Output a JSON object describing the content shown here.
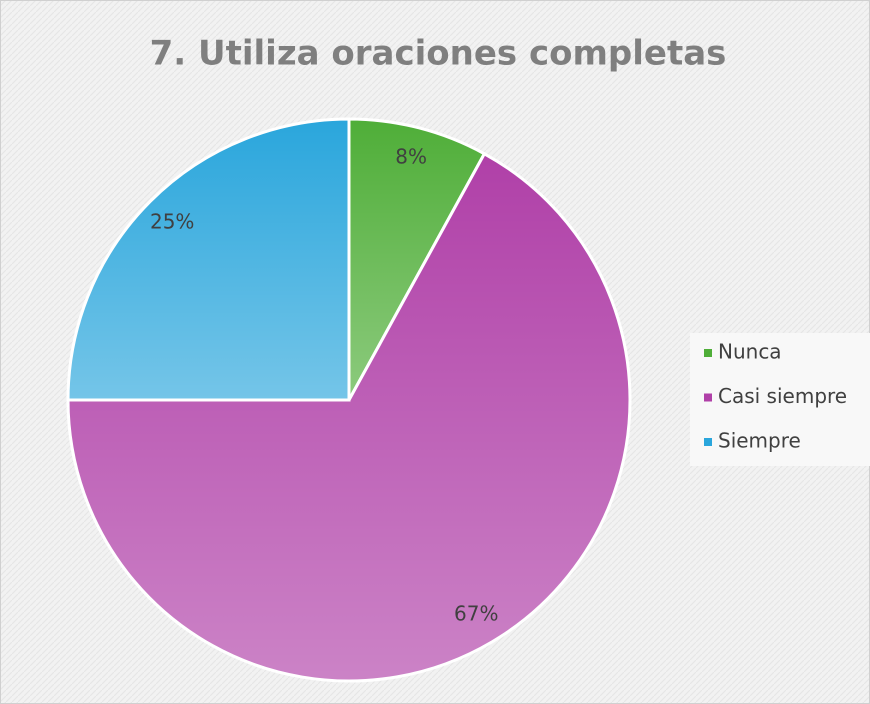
{
  "chart_data": {
    "type": "pie",
    "title": "7. Utiliza oraciones completas",
    "categories": [
      "Nunca",
      "Casi siempre",
      "Siempre"
    ],
    "values": [
      8,
      67,
      25
    ],
    "value_labels": [
      "8%",
      "67%",
      "25%"
    ],
    "colors": [
      "#4fae38",
      "#b040a8",
      "#2aa6dc"
    ],
    "legend": "right"
  }
}
